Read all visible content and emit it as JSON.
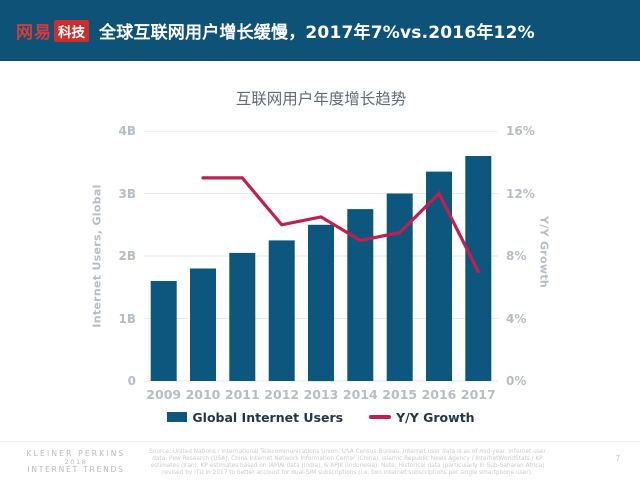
{
  "header": {
    "logo_brand": "网易",
    "logo_sub": "科技",
    "title": "全球互联网用户增长缓慢，2017年7%vs.2016年12%"
  },
  "chart_data": {
    "type": "bar",
    "combo": "bar+line",
    "title": "互联网用户年度增长趋势",
    "categories": [
      "2009",
      "2010",
      "2011",
      "2012",
      "2013",
      "2014",
      "2015",
      "2016",
      "2017"
    ],
    "series": [
      {
        "name": "Global Internet Users",
        "type": "bar",
        "axis": "left",
        "color": "#0D567E",
        "unit": "billions",
        "values": [
          1.6,
          1.8,
          2.05,
          2.25,
          2.5,
          2.75,
          3.0,
          3.35,
          3.6
        ]
      },
      {
        "name": "Y/Y Growth",
        "type": "line",
        "axis": "right",
        "color": "#C11F4F",
        "unit": "%",
        "values": [
          null,
          13,
          13,
          10,
          10.5,
          9,
          9.5,
          12,
          7
        ]
      }
    ],
    "left_axis": {
      "label": "Internet Users, Global",
      "range": [
        0,
        4
      ],
      "ticks": [
        {
          "label": "0",
          "v": 0
        },
        {
          "label": "1B",
          "v": 1
        },
        {
          "label": "2B",
          "v": 2
        },
        {
          "label": "3B",
          "v": 3
        },
        {
          "label": "4B",
          "v": 4
        }
      ]
    },
    "right_axis": {
      "label": "Y/Y Growth",
      "range": [
        0,
        16
      ],
      "ticks": [
        {
          "label": "0%",
          "v": 0
        },
        {
          "label": "4%",
          "v": 4
        },
        {
          "label": "8%",
          "v": 8
        },
        {
          "label": "12%",
          "v": 12
        },
        {
          "label": "16%",
          "v": 16
        }
      ]
    },
    "grid": true,
    "legend_position": "bottom"
  },
  "legend": {
    "items": [
      {
        "label": "Global Internet Users",
        "swatch": "bar"
      },
      {
        "label": "Y/Y Growth",
        "swatch": "line"
      }
    ]
  },
  "footer": {
    "brand_lines": [
      "KLEINER PERKINS",
      "2018",
      "INTERNET TRENDS"
    ],
    "source_lines": [
      "Source: United Nations / International Telecommunications Union, USA Census Bureau. Internet user data is as of mid-year. Internet user",
      "data: Pew Research (USA), China Internet Network Information Center (China), Islamic Republic News Agency / InternetWorldStats / KP",
      "estimates (Iran), KP estimates based on IAMAI data (India), & APJII (Indonesia). Note: Historical data (particularly in Sub-Saharan Africa)",
      "revised by ITU in 2017 to better account for dual-SIM subscriptions (i.e. two internet subscriptions per single smartphone user)."
    ],
    "page_number": "7"
  },
  "colors": {
    "header_bg": "#0F5278",
    "logo_red": "#CC2E2E",
    "bar": "#0D567E",
    "line": "#C11F4F",
    "axis_text": "#B6BDC4",
    "gridline": "#E6E8EA",
    "chart_title": "#5E6B78",
    "legend_text": "#243746",
    "footer_text": "#B9B9B9"
  }
}
